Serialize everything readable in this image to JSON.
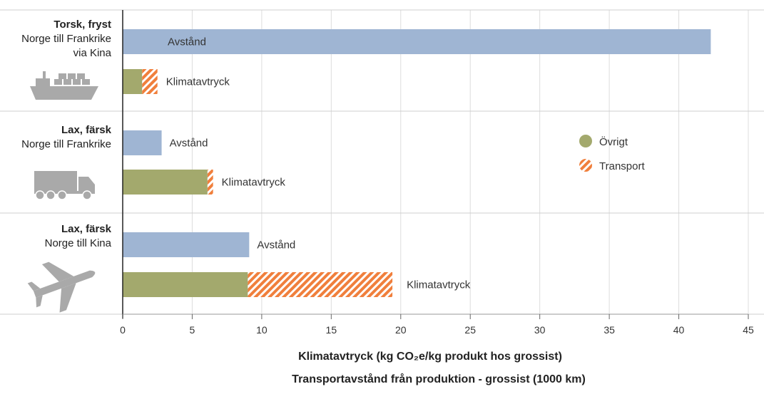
{
  "chart_data": {
    "type": "bar",
    "orientation": "horizontal",
    "stacked_pairs": true,
    "xlim": [
      0,
      45
    ],
    "x_ticks": [
      "0",
      "5",
      "10",
      "15",
      "20",
      "25",
      "30",
      "35",
      "40",
      "45"
    ],
    "xlabel": "Klimatavtryck (kg CO₂e/kg produkt hos grossist)",
    "xlabel2": "Transportavstånd från produktion - grossist  (1000 km)",
    "legend": {
      "placement": "right",
      "entries": [
        {
          "name": "Övrigt",
          "color": "#a3a96d",
          "pattern": "solid"
        },
        {
          "name": "Transport",
          "color": "#f07f3c",
          "pattern": "hatched"
        }
      ]
    },
    "colors": {
      "distance": "#9fb5d3",
      "ovrigt": "#a3a96d",
      "transport": "#f07f3c"
    },
    "categories": [
      {
        "title": "Torsk, fryst",
        "subtitle": [
          "Norge till Frankrike",
          "via Kina"
        ],
        "icon": "ship-icon",
        "distance_label": "Avstånd",
        "distance": 42.3,
        "footprint_label": "Klimatavtryck",
        "ovrigt": 1.4,
        "transport": 1.1
      },
      {
        "title": "Lax, färsk",
        "subtitle": [
          "Norge till Frankrike"
        ],
        "icon": "truck-icon",
        "distance_label": "Avstånd",
        "distance": 2.8,
        "footprint_label": "Klimatavtryck",
        "ovrigt": 6.1,
        "transport": 0.4
      },
      {
        "title": "Lax, färsk",
        "subtitle": [
          "Norge till Kina"
        ],
        "icon": "airplane-icon",
        "distance_label": "Avstånd",
        "distance": 9.1,
        "footprint_label": "Klimatavtryck",
        "ovrigt": 9.0,
        "transport": 10.4
      }
    ]
  }
}
